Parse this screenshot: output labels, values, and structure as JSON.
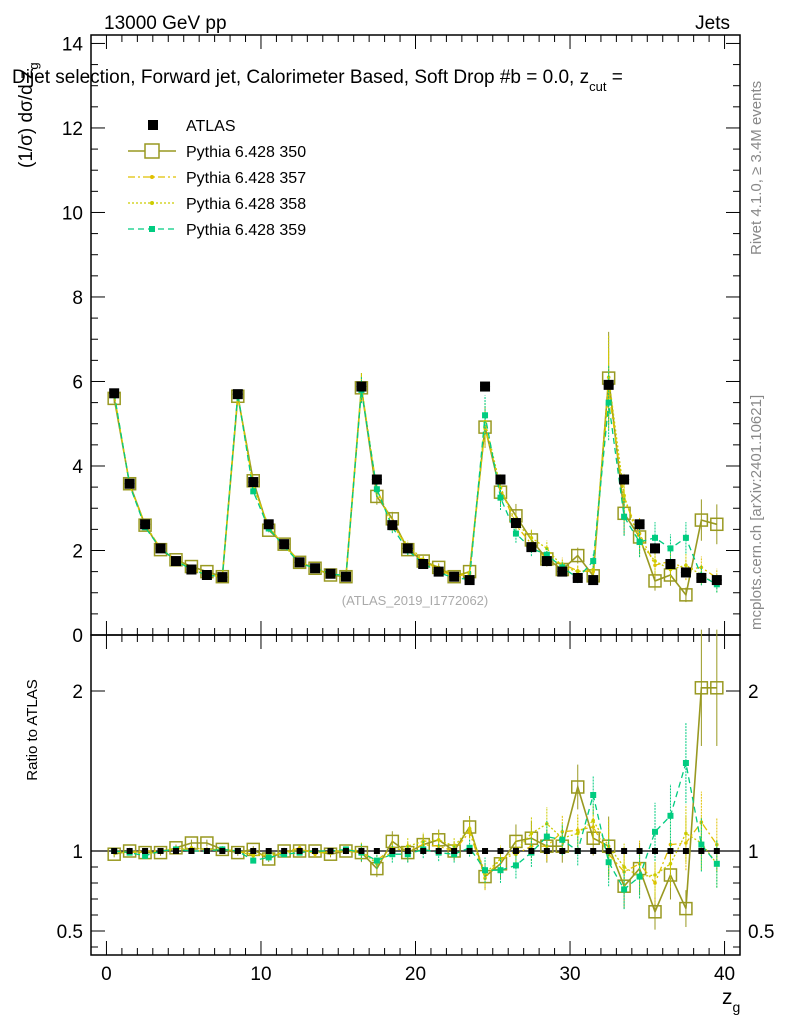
{
  "header": {
    "left": "13000 GeV pp",
    "right": "Jets",
    "title": "Dijet selection, Forward jet, Calorimeter Based, Soft Drop #b = 0.0, z",
    "title_sub": "cut",
    "title_end": " ="
  },
  "side": {
    "rivet": "Rivet 4.1.0, ≥ 3.4M events",
    "mcplots": "mcplots.cern.ch [arXiv:2401.10621]"
  },
  "watermark": "(ATLAS_2019_I1772062)",
  "axes": {
    "ylabel_main": "(1/σ) dσ/d z",
    "ylabel_main_sub": "g",
    "ylabel_ratio": "Ratio to ATLAS",
    "xlabel": "z",
    "xlabel_sub": "g"
  },
  "legend": [
    "ATLAS",
    "Pythia 6.428 350",
    "Pythia 6.428 357",
    "Pythia 6.428 358",
    "Pythia 6.428 359"
  ],
  "colors": {
    "atlas": "#000000",
    "p350": "#999921",
    "p357": "#e0c000",
    "p358": "#cccc00",
    "p359": "#00cc80"
  },
  "chart_data": {
    "type": "scatter",
    "xlim": [
      -1,
      41
    ],
    "ylim": [
      0,
      14.2
    ],
    "ratio_ylim": [
      0.35,
      2.35
    ],
    "x_ticks": [
      0,
      10,
      20,
      30,
      40
    ],
    "y_ticks": [
      0,
      2,
      4,
      6,
      8,
      10,
      12,
      14
    ],
    "ratio_ticks": [
      0.5,
      1,
      2
    ],
    "x": [
      0.5,
      1.5,
      2.5,
      3.5,
      4.5,
      5.5,
      6.5,
      7.5,
      8.5,
      9.5,
      10.5,
      11.5,
      12.5,
      13.5,
      14.5,
      15.5,
      16.5,
      17.5,
      18.5,
      19.5,
      20.5,
      21.5,
      22.5,
      23.5,
      24.5,
      25.5,
      26.5,
      27.5,
      28.5,
      29.5,
      30.5,
      31.5,
      32.5,
      33.5,
      34.5,
      35.5,
      36.5,
      37.5,
      38.5,
      39.5
    ],
    "series": [
      {
        "name": "ATLAS",
        "values": [
          5.72,
          3.58,
          2.62,
          2.05,
          1.75,
          1.55,
          1.42,
          1.37,
          5.7,
          3.62,
          2.62,
          2.15,
          1.72,
          1.58,
          1.45,
          1.38,
          5.88,
          3.68,
          2.6,
          2.05,
          1.68,
          1.5,
          1.38,
          1.3,
          5.88,
          3.68,
          2.65,
          2.08,
          1.75,
          1.5,
          1.35,
          1.3,
          5.92,
          3.68,
          2.62,
          2.05,
          1.68,
          1.48,
          1.35,
          1.3
        ]
      },
      {
        "name": "Pythia 6.428 350",
        "values": [
          5.6,
          3.58,
          2.6,
          2.02,
          1.78,
          1.62,
          1.5,
          1.38,
          5.65,
          3.65,
          2.48,
          2.15,
          1.72,
          1.58,
          1.42,
          1.38,
          5.85,
          3.28,
          2.75,
          2.02,
          1.75,
          1.6,
          1.38,
          1.5,
          4.92,
          3.38,
          2.82,
          2.25,
          1.8,
          1.55,
          1.88,
          1.4,
          6.08,
          2.88,
          2.32,
          1.28,
          1.42,
          0.95,
          2.72,
          2.62
        ]
      },
      {
        "name": "Pythia 6.428 357",
        "values": [
          5.7,
          3.55,
          2.62,
          2.05,
          1.78,
          1.55,
          1.42,
          1.38,
          5.7,
          3.55,
          2.55,
          2.12,
          1.75,
          1.55,
          1.45,
          1.38,
          5.85,
          3.45,
          2.65,
          2.05,
          1.75,
          1.55,
          1.38,
          1.45,
          4.9,
          3.48,
          2.6,
          2.15,
          1.8,
          1.68,
          1.52,
          1.5,
          5.8,
          3.2,
          2.4,
          1.65,
          1.75,
          1.55,
          1.6,
          1.35
        ]
      },
      {
        "name": "Pythia 6.428 358",
        "values": [
          5.68,
          3.55,
          2.58,
          2.04,
          1.77,
          1.58,
          1.44,
          1.38,
          5.68,
          3.5,
          2.58,
          2.1,
          1.74,
          1.56,
          1.44,
          1.4,
          5.9,
          3.4,
          2.6,
          2.12,
          1.78,
          1.6,
          1.42,
          1.48,
          5.05,
          3.5,
          2.65,
          2.3,
          2.05,
          1.62,
          1.5,
          1.55,
          6.1,
          3.3,
          2.2,
          1.75,
          1.55,
          1.65,
          1.42,
          1.2
        ]
      },
      {
        "name": "Pythia 6.428 359",
        "values": [
          5.72,
          3.55,
          2.55,
          2.05,
          1.76,
          1.55,
          1.42,
          1.38,
          5.72,
          3.4,
          2.52,
          2.1,
          1.7,
          1.58,
          1.45,
          1.4,
          5.8,
          3.45,
          2.55,
          2.0,
          1.7,
          1.48,
          1.35,
          1.32,
          5.2,
          3.25,
          2.4,
          2.05,
          1.9,
          1.6,
          1.35,
          1.75,
          5.5,
          2.8,
          2.2,
          2.3,
          2.05,
          2.3,
          1.4,
          1.2
        ]
      }
    ],
    "ratio_series": [
      {
        "name": "Pythia 6.428 350",
        "values": [
          0.98,
          1.0,
          0.99,
          0.99,
          1.02,
          1.05,
          1.05,
          1.01,
          0.99,
          1.01,
          0.95,
          1.0,
          1.0,
          1.0,
          0.98,
          1.0,
          0.99,
          0.89,
          1.06,
          0.99,
          1.04,
          1.07,
          1.0,
          1.15,
          0.84,
          0.92,
          1.06,
          1.08,
          1.03,
          1.03,
          1.4,
          1.08,
          1.03,
          0.78,
          0.89,
          0.62,
          0.85,
          0.64,
          2.02,
          2.02
        ]
      },
      {
        "name": "Pythia 6.428 357",
        "values": [
          1.0,
          0.99,
          1.0,
          1.0,
          1.02,
          1.0,
          1.0,
          1.01,
          1.0,
          0.98,
          0.97,
          0.99,
          1.02,
          0.98,
          1.0,
          1.0,
          0.99,
          0.94,
          1.02,
          1.0,
          1.04,
          1.03,
          1.0,
          1.12,
          0.83,
          0.95,
          0.98,
          1.03,
          1.03,
          1.12,
          1.13,
          1.15,
          0.98,
          0.87,
          0.92,
          0.8,
          1.04,
          1.05,
          1.18,
          1.04
        ]
      },
      {
        "name": "Pythia 6.428 358",
        "values": [
          0.99,
          0.99,
          0.98,
          1.0,
          1.01,
          1.02,
          1.01,
          1.01,
          1.0,
          0.97,
          0.98,
          0.98,
          1.01,
          0.99,
          0.99,
          1.01,
          1.0,
          0.92,
          1.0,
          1.03,
          1.06,
          1.07,
          1.03,
          1.14,
          0.86,
          0.95,
          1.0,
          1.11,
          1.17,
          1.08,
          1.11,
          1.19,
          1.03,
          0.9,
          0.84,
          0.85,
          0.92,
          1.11,
          1.05,
          0.92
        ]
      },
      {
        "name": "Pythia 6.428 359",
        "values": [
          1.0,
          0.99,
          0.97,
          1.0,
          1.01,
          1.0,
          1.0,
          1.01,
          1.0,
          0.94,
          0.96,
          0.98,
          0.99,
          1.0,
          1.0,
          1.01,
          0.99,
          0.94,
          0.98,
          0.98,
          1.01,
          0.99,
          0.98,
          1.02,
          0.88,
          0.88,
          0.91,
          0.99,
          1.09,
          1.07,
          1.0,
          1.35,
          0.93,
          0.76,
          0.84,
          1.12,
          1.22,
          1.55,
          1.04,
          0.92
        ]
      }
    ]
  }
}
